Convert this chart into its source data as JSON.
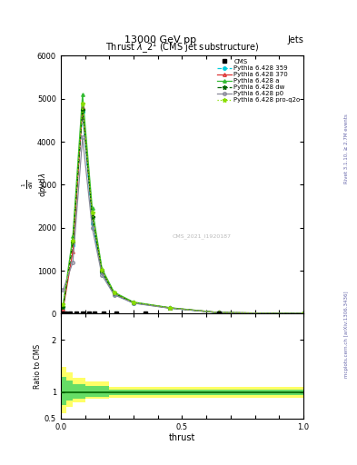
{
  "title": "Thrust $\\lambda\\_2^1$ (CMS jet substructure)",
  "top_label": "13000 GeV pp",
  "top_right_label": "Jets",
  "right_label1": "Rivet 3.1.10, ≥ 2.7M events",
  "right_label2": "mcplots.cern.ch [arXiv:1306.3436]",
  "xlabel": "thrust",
  "ratio_ylabel": "Ratio to CMS",
  "watermark": "CMS_2021_I1920187",
  "main_x": [
    0.01,
    0.05,
    0.09,
    0.13,
    0.17,
    0.22,
    0.3,
    0.45,
    0.65,
    1.0
  ],
  "py359_y": [
    150,
    1600,
    4700,
    2100,
    950,
    450,
    250,
    130,
    25,
    2
  ],
  "py370_y": [
    120,
    1450,
    4800,
    2300,
    1000,
    480,
    260,
    135,
    27,
    2
  ],
  "pya_y": [
    200,
    1800,
    5100,
    2450,
    1050,
    500,
    270,
    140,
    28,
    2
  ],
  "pydw_y": [
    160,
    1650,
    4750,
    2250,
    980,
    470,
    258,
    132,
    26,
    2
  ],
  "pyp0_y": [
    550,
    1200,
    4100,
    2000,
    900,
    440,
    245,
    128,
    25,
    2
  ],
  "pyq2o_y": [
    220,
    1700,
    4900,
    2350,
    1020,
    485,
    265,
    136,
    27,
    2
  ],
  "cms_x": [
    0.005,
    0.02,
    0.04,
    0.065,
    0.09,
    0.115,
    0.14,
    0.175,
    0.23,
    0.35,
    0.65
  ],
  "ylim_main": [
    0,
    6000
  ],
  "yticks_main": [
    0,
    1000,
    2000,
    3000,
    4000,
    5000,
    6000
  ],
  "ylim_ratio": [
    0.5,
    2.5
  ],
  "yticks_ratio": [
    0.5,
    1.0,
    2.0
  ],
  "xlim": [
    0.0,
    1.0
  ],
  "xticks": [
    0.0,
    0.1,
    0.2,
    0.3,
    0.4,
    0.5,
    0.6,
    0.7,
    0.8,
    0.9,
    1.0
  ],
  "legend_entries": [
    "CMS",
    "Pythia 6.428 359",
    "Pythia 6.428 370",
    "Pythia 6.428 a",
    "Pythia 6.428 dw",
    "Pythia 6.428 p0",
    "Pythia 6.428 pro-q2o"
  ],
  "colors": {
    "cms": "#000000",
    "py359": "#00ccdd",
    "py370": "#dd3333",
    "pya": "#33bb33",
    "pydw": "#006600",
    "pyp0": "#888899",
    "pyq2o": "#88dd00"
  },
  "ratio_bands": {
    "yellow_bins": [
      [
        0.0,
        0.025
      ],
      [
        0.025,
        0.05
      ],
      [
        0.05,
        0.1
      ],
      [
        0.1,
        0.2
      ],
      [
        0.2,
        1.0
      ]
    ],
    "yellow_lo": [
      0.6,
      0.72,
      0.8,
      0.87,
      0.9
    ],
    "yellow_hi": [
      1.48,
      1.38,
      1.28,
      1.2,
      1.1
    ],
    "green_lo": [
      0.76,
      0.84,
      0.88,
      0.92,
      0.95
    ],
    "green_hi": [
      1.3,
      1.22,
      1.16,
      1.12,
      1.05
    ]
  }
}
